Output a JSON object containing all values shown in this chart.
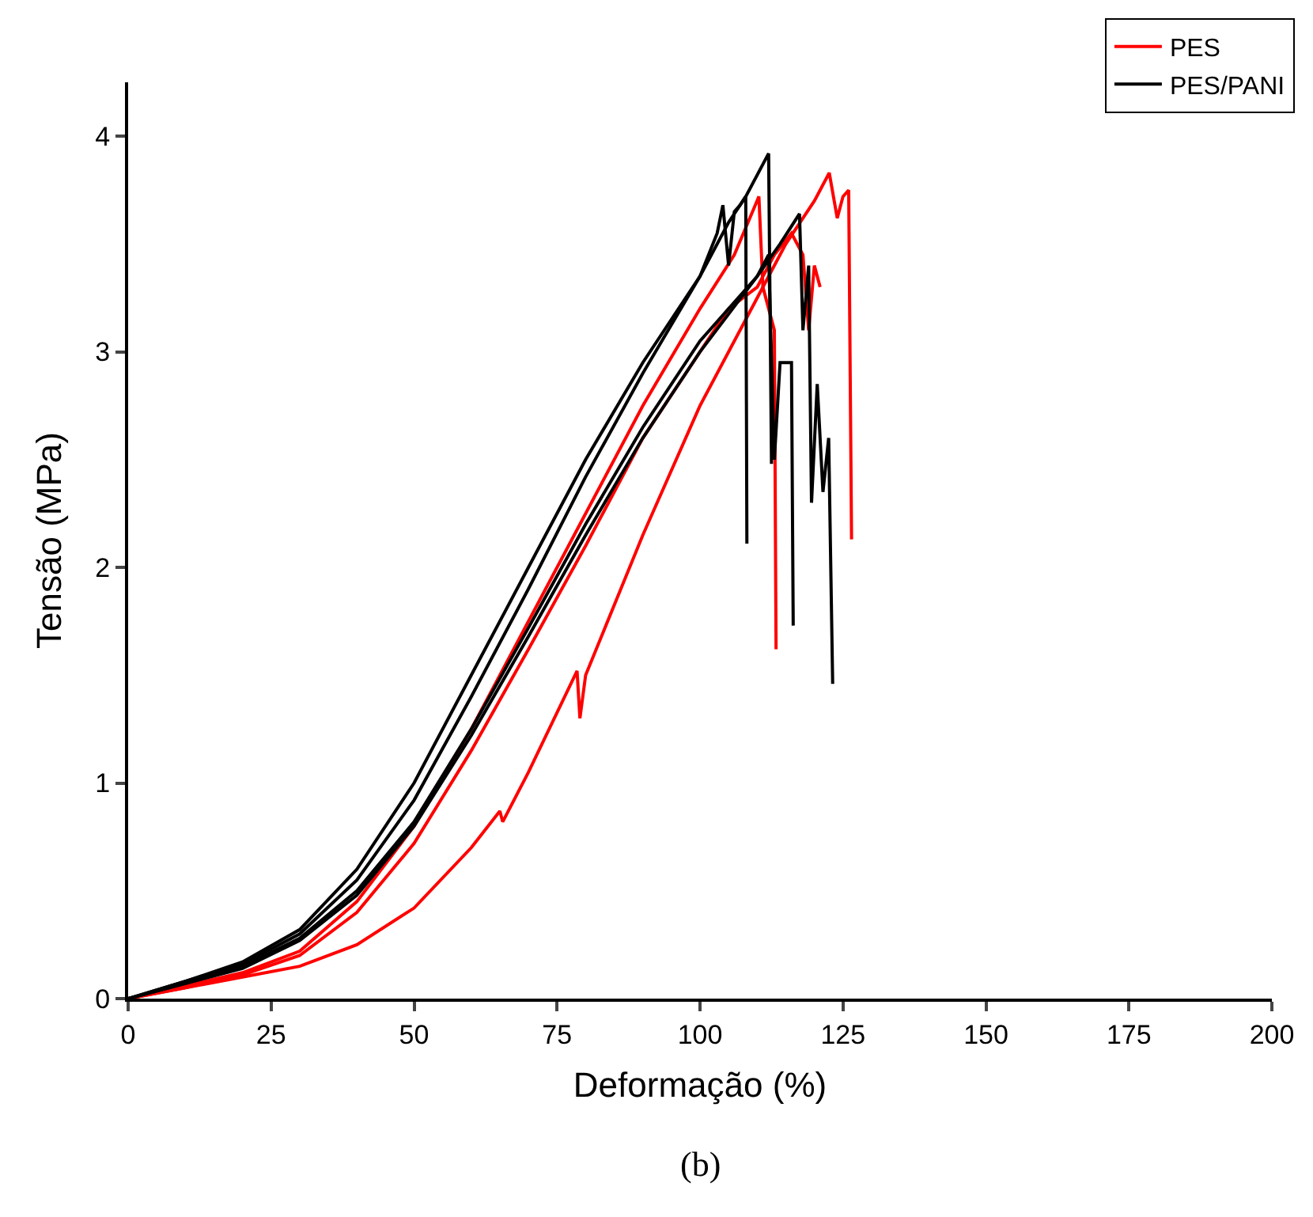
{
  "chart_data": {
    "type": "line",
    "xlabel": "Deformação (%)",
    "ylabel": "Tensão (MPa)",
    "annotations": [
      "(b)"
    ],
    "xlim": [
      0,
      200
    ],
    "ylim": [
      0,
      4.25
    ],
    "xticks": [
      0,
      25,
      50,
      75,
      100,
      125,
      150,
      175,
      200
    ],
    "yticks": [
      0,
      1,
      2,
      3,
      4
    ],
    "legend": "top right",
    "marker": "none",
    "line_style": "solid",
    "series": [
      {
        "name": "PES",
        "color": "#ff0000",
        "x": [
          0,
          10,
          20,
          30,
          40,
          50,
          60,
          65,
          65.5,
          70,
          78.5,
          79,
          80,
          90,
          100,
          110,
          115,
          120,
          122.6,
          124,
          125,
          126,
          126.5
        ],
        "values": [
          0,
          0.05,
          0.1,
          0.15,
          0.25,
          0.42,
          0.7,
          0.87,
          0.82,
          1.05,
          1.52,
          1.3,
          1.5,
          2.15,
          2.75,
          3.25,
          3.5,
          3.7,
          3.83,
          3.62,
          3.72,
          3.75,
          2.13
        ]
      },
      {
        "color": "#ff0000",
        "x": [
          0,
          10,
          20,
          30,
          40,
          50,
          60,
          70,
          80,
          90,
          100,
          106,
          110.3,
          111,
          113,
          113.3
        ],
        "values": [
          0,
          0.06,
          0.12,
          0.22,
          0.45,
          0.8,
          1.25,
          1.75,
          2.25,
          2.75,
          3.2,
          3.45,
          3.72,
          3.3,
          3.1,
          1.62
        ]
      },
      {
        "color": "#ff0000",
        "x": [
          0,
          10,
          20,
          30,
          40,
          50,
          60,
          70,
          80,
          90,
          100,
          105,
          110,
          113,
          116,
          118,
          119,
          120,
          121
        ],
        "values": [
          0,
          0.05,
          0.11,
          0.2,
          0.4,
          0.72,
          1.15,
          1.62,
          2.1,
          2.6,
          3.0,
          3.2,
          3.3,
          3.45,
          3.55,
          3.45,
          3.1,
          3.4,
          3.3
        ]
      },
      {
        "name": "PES/PANI",
        "color": "#000000",
        "x": [
          0,
          10,
          20,
          30,
          40,
          50,
          60,
          70,
          80,
          90,
          100,
          105,
          108,
          112,
          112.5
        ],
        "values": [
          0,
          0.08,
          0.17,
          0.32,
          0.6,
          1.0,
          1.5,
          2.0,
          2.5,
          2.95,
          3.35,
          3.6,
          3.72,
          3.92,
          2.48
        ]
      },
      {
        "color": "#000000",
        "x": [
          0,
          10,
          20,
          30,
          40,
          50,
          60,
          70,
          80,
          90,
          100,
          103,
          104,
          105,
          106,
          107,
          108,
          108.2
        ],
        "values": [
          0,
          0.08,
          0.16,
          0.3,
          0.55,
          0.92,
          1.4,
          1.9,
          2.42,
          2.9,
          3.35,
          3.55,
          3.68,
          3.4,
          3.65,
          3.68,
          3.72,
          2.11
        ]
      },
      {
        "color": "#000000",
        "x": [
          0,
          10,
          20,
          30,
          40,
          50,
          60,
          70,
          80,
          90,
          100,
          110,
          114,
          117.4,
          118,
          119,
          119.5,
          120.5,
          121.5,
          122.5,
          123.2
        ],
        "values": [
          0,
          0.07,
          0.15,
          0.28,
          0.5,
          0.82,
          1.25,
          1.72,
          2.2,
          2.65,
          3.05,
          3.35,
          3.5,
          3.64,
          3.1,
          3.4,
          2.3,
          2.85,
          2.35,
          2.6,
          1.46
        ]
      },
      {
        "color": "#000000",
        "x": [
          0,
          10,
          20,
          30,
          40,
          50,
          60,
          70,
          80,
          90,
          100,
          110,
          112,
          113,
          114,
          116,
          116.3
        ],
        "values": [
          0,
          0.07,
          0.14,
          0.27,
          0.48,
          0.8,
          1.22,
          1.68,
          2.15,
          2.6,
          3.0,
          3.35,
          3.45,
          2.5,
          2.95,
          2.95,
          1.73
        ]
      }
    ]
  }
}
